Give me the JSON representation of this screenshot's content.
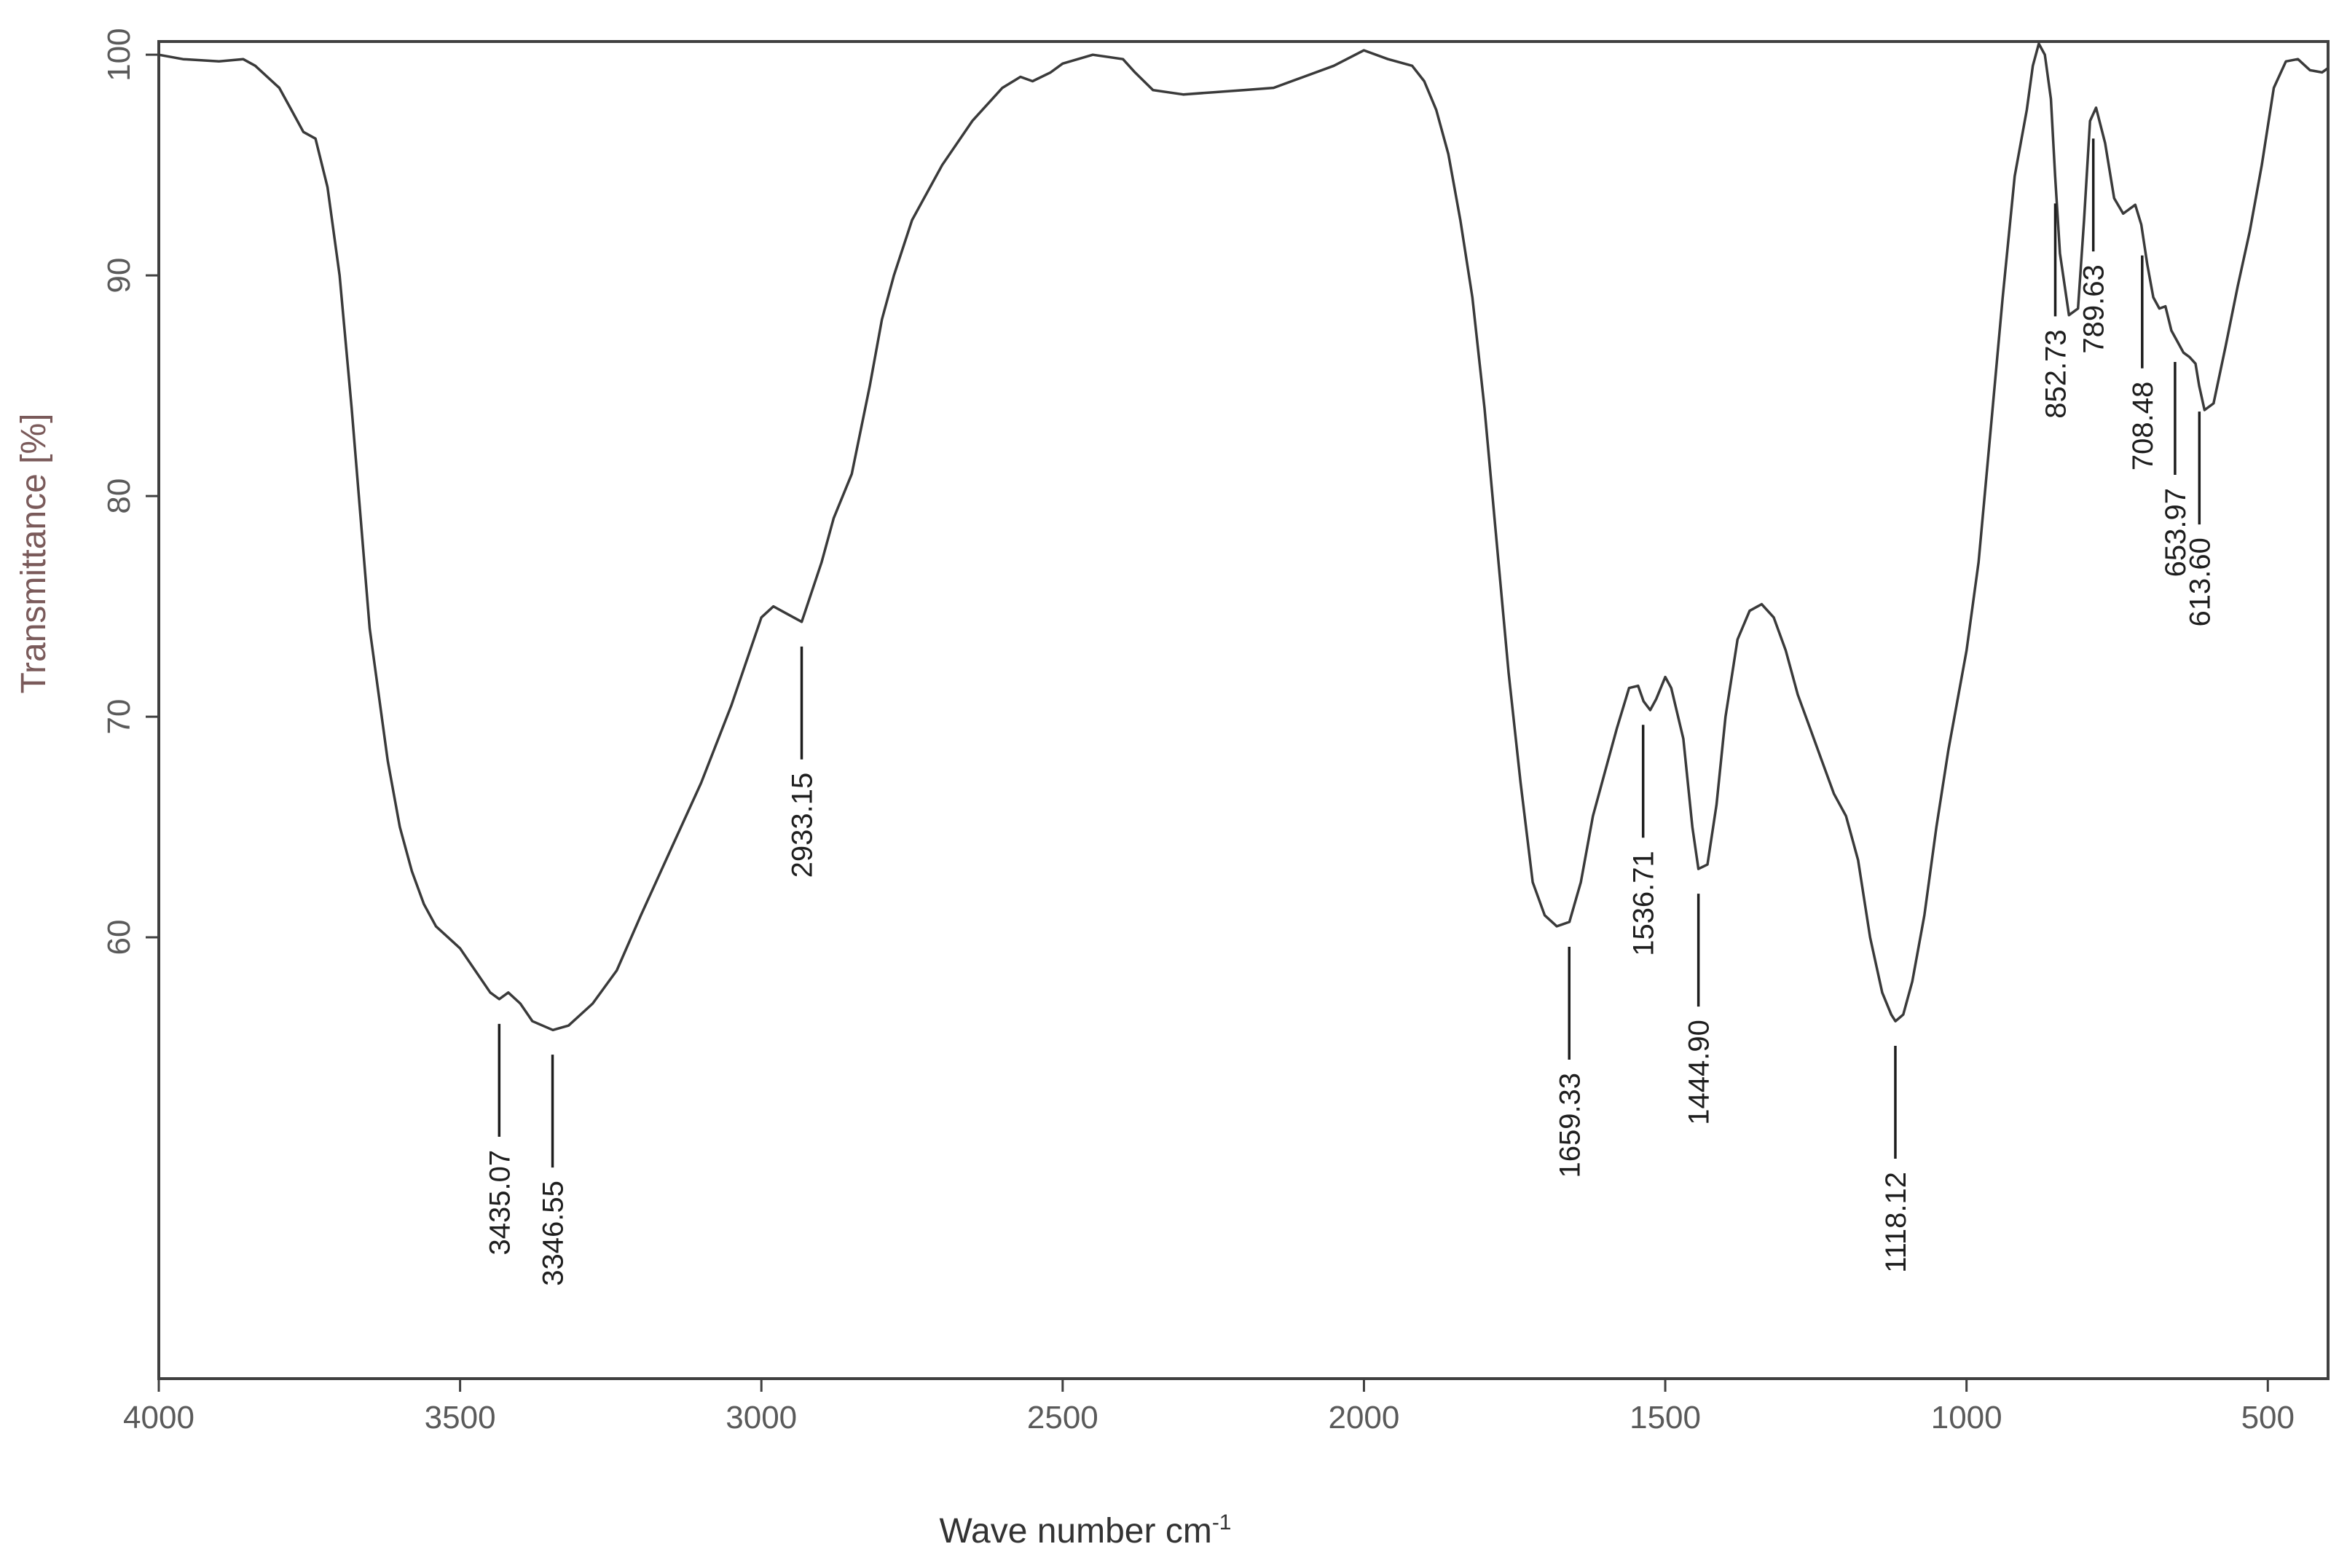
{
  "chart_data": {
    "type": "line",
    "title": "",
    "xlabel": "Wave number cm",
    "xlabel_sup": "-1",
    "ylabel": "Transmittance [%]",
    "xlim": [
      4000,
      400
    ],
    "ylim": [
      40,
      100.6
    ],
    "x_reversed": true,
    "grid": false,
    "legend": "none",
    "x_ticks": [
      {
        "value": 4000,
        "label": "4000"
      },
      {
        "value": 3500,
        "label": "3500"
      },
      {
        "value": 3000,
        "label": "3000"
      },
      {
        "value": 2500,
        "label": "2500"
      },
      {
        "value": 2000,
        "label": "2000"
      },
      {
        "value": 1500,
        "label": "1500"
      },
      {
        "value": 1000,
        "label": "1000"
      },
      {
        "value": 500,
        "label": "500"
      }
    ],
    "y_ticks": [
      {
        "value": 100,
        "label": "100"
      },
      {
        "value": 90,
        "label": "90"
      },
      {
        "value": 80,
        "label": "80"
      },
      {
        "value": 70,
        "label": "70"
      },
      {
        "value": 60,
        "label": "60"
      }
    ],
    "series": [
      {
        "x": [
          4000,
          3960,
          3900,
          3860,
          3840,
          3800,
          3780,
          3760,
          3740,
          3720,
          3700,
          3680,
          3650,
          3620,
          3600,
          3580,
          3560,
          3540,
          3520,
          3500,
          3475,
          3450,
          3435,
          3420,
          3400,
          3380,
          3346,
          3320,
          3280,
          3240,
          3200,
          3150,
          3100,
          3050,
          3000,
          2980,
          2960,
          2933,
          2900,
          2880,
          2850,
          2820,
          2800,
          2780,
          2750,
          2700,
          2650,
          2600,
          2570,
          2550,
          2520,
          2500,
          2450,
          2400,
          2380,
          2350,
          2300,
          2250,
          2200,
          2150,
          2100,
          2050,
          2000,
          1960,
          1920,
          1900,
          1880,
          1860,
          1840,
          1820,
          1800,
          1780,
          1760,
          1740,
          1720,
          1700,
          1680,
          1659,
          1640,
          1620,
          1600,
          1580,
          1560,
          1545,
          1536,
          1525,
          1515,
          1500,
          1490,
          1470,
          1455,
          1445,
          1430,
          1415,
          1400,
          1380,
          1360,
          1340,
          1320,
          1300,
          1280,
          1260,
          1240,
          1220,
          1200,
          1190,
          1180,
          1160,
          1140,
          1125,
          1118,
          1105,
          1090,
          1070,
          1050,
          1030,
          1000,
          980,
          960,
          940,
          920,
          900,
          890,
          880,
          870,
          860,
          853,
          845,
          830,
          815,
          805,
          795,
          785,
          770,
          755,
          740,
          720,
          710,
          700,
          690,
          680,
          670,
          660,
          650,
          640,
          630,
          620,
          614,
          605,
          590,
          570,
          550,
          530,
          510,
          490,
          470,
          450,
          430,
          410,
          400
        ],
        "y": [
          100,
          99.8,
          99.7,
          99.8,
          99.5,
          98.5,
          97.5,
          96.5,
          96.2,
          94,
          90,
          84,
          74,
          68,
          65,
          63,
          61.5,
          60.5,
          60,
          59.5,
          58.5,
          57.5,
          57.2,
          57.5,
          57,
          56.2,
          55.8,
          56,
          57,
          58.5,
          61,
          64,
          67,
          70.5,
          74.5,
          75,
          74.7,
          74.3,
          77,
          79,
          81,
          85,
          88,
          90,
          92.5,
          95,
          97,
          98.5,
          99,
          98.8,
          99.2,
          99.6,
          100,
          99.8,
          99.2,
          98.4,
          98.2,
          98.3,
          98.4,
          98.5,
          99,
          99.5,
          100.2,
          99.8,
          99.5,
          98.8,
          97.5,
          95.5,
          92.5,
          89,
          84,
          78,
          72,
          67,
          62.5,
          61,
          60.5,
          60.7,
          62.5,
          65.5,
          67.5,
          69.5,
          71.3,
          71.4,
          70.7,
          70.3,
          70.8,
          71.8,
          71.3,
          69,
          65,
          63.1,
          63.3,
          66,
          70,
          73.5,
          74.8,
          75.1,
          74.5,
          73,
          71,
          69.5,
          68,
          66.5,
          65.5,
          64.5,
          63.5,
          60,
          57.5,
          56.5,
          56.2,
          56.5,
          58,
          61,
          65,
          68.5,
          73,
          77,
          83,
          89,
          94.5,
          97.5,
          99.5,
          100.5,
          100,
          98,
          94.5,
          91,
          88.2,
          88.5,
          92.5,
          97,
          97.6,
          96,
          93.5,
          92.8,
          93.2,
          92.3,
          90.5,
          89,
          88.5,
          88.6,
          87.5,
          87,
          86.5,
          86.3,
          86,
          85,
          83.9,
          84.2,
          86.8,
          89.5,
          92,
          95,
          98.5,
          99.7,
          99.8,
          99.3,
          99.2,
          99.4
        ]
      }
    ],
    "annotations": [
      {
        "wavenumber": 3435.07,
        "label": "3435.07",
        "position": "below"
      },
      {
        "wavenumber": 3346.55,
        "label": "3346.55",
        "position": "below"
      },
      {
        "wavenumber": 2933.15,
        "label": "2933.15",
        "position": "below"
      },
      {
        "wavenumber": 1659.33,
        "label": "1659.33",
        "position": "below"
      },
      {
        "wavenumber": 1536.71,
        "label": "1536.71",
        "position": "below"
      },
      {
        "wavenumber": 1444.9,
        "label": "1444.90",
        "position": "below"
      },
      {
        "wavenumber": 1118.12,
        "label": "1118.12",
        "position": "below"
      },
      {
        "wavenumber": 852.73,
        "label": "852.73",
        "position": "below"
      },
      {
        "wavenumber": 789.63,
        "label": "789.63",
        "position": "below"
      },
      {
        "wavenumber": 708.48,
        "label": "708.48",
        "position": "below"
      },
      {
        "wavenumber": 653.97,
        "label": "653.97",
        "position": "below"
      },
      {
        "wavenumber": 613.6,
        "label": "613.60",
        "position": "below"
      }
    ],
    "colors": {
      "line": "#3a3a3a",
      "frame": "#404040",
      "tick_label": "#5a5a5a",
      "ylabel": "#7a5a5a"
    }
  }
}
